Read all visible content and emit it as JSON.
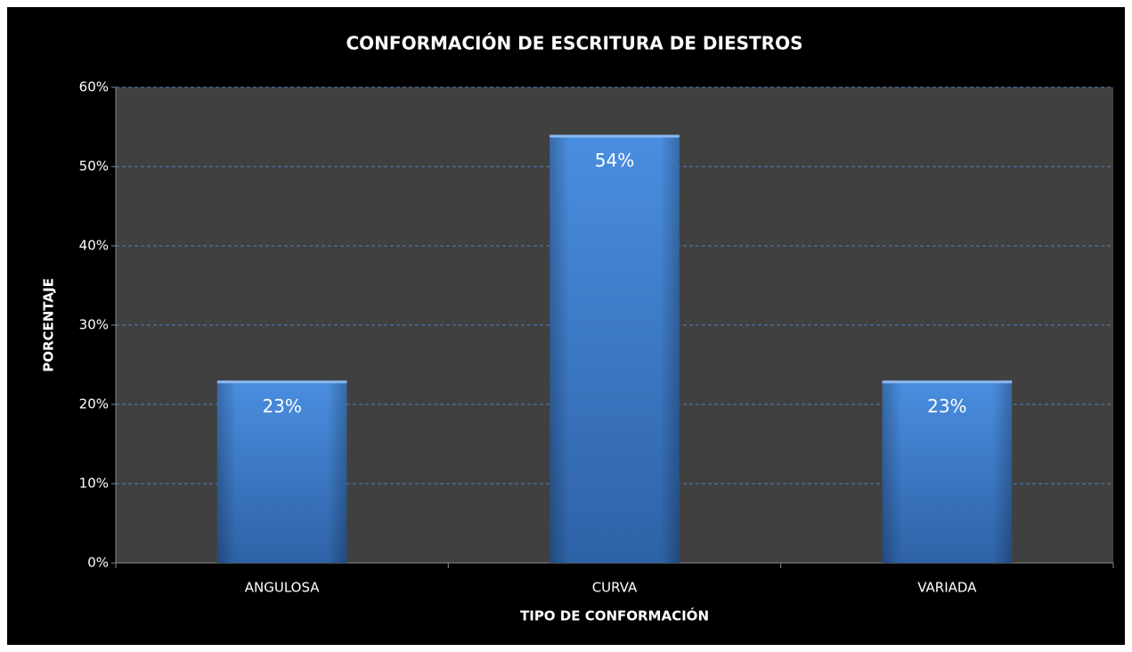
{
  "chart_data": {
    "type": "bar",
    "title": "CONFORMACIÓN DE ESCRITURA DE DIESTROS",
    "x_label": "TIPO DE CONFORMACIÓN",
    "y_label": "PORCENTAJE",
    "categories": [
      "ANGULOSA",
      "CURVA",
      "VARIADA"
    ],
    "values": [
      23,
      54,
      23
    ],
    "value_labels": [
      "23%",
      "54%",
      "23%"
    ],
    "color": "#3f7fd0",
    "ylim": [
      0,
      60
    ],
    "yticks": [
      {
        "value": 0,
        "label": "0%"
      },
      {
        "value": 10,
        "label": "10%"
      },
      {
        "value": 20,
        "label": "20%"
      },
      {
        "value": 30,
        "label": "30%"
      },
      {
        "value": 40,
        "label": "40%"
      },
      {
        "value": 50,
        "label": "50%"
      },
      {
        "value": 60,
        "label": "60%"
      }
    ],
    "grid": true
  }
}
